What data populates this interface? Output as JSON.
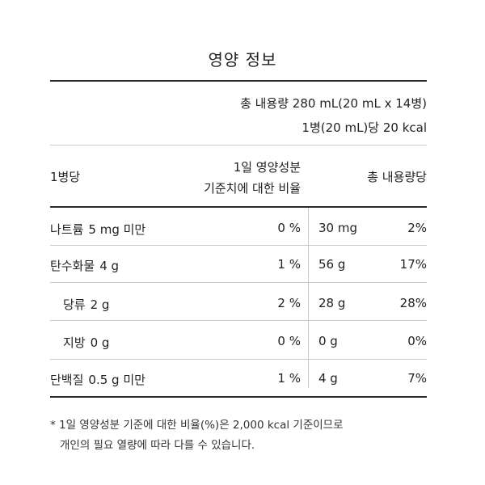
{
  "title": "영양 정보",
  "summary": {
    "total_content": "총 내용량 280 mL(20 mL x 14병)",
    "per_bottle": "1병(20 mL)당 20 kcal"
  },
  "header": {
    "col1": "1병당",
    "col2_line1": "1일 영양성분",
    "col2_line2": "기준치에 대한 비율",
    "col3": "총 내용량당"
  },
  "rows": [
    {
      "name": "나트륨",
      "amount": "5 mg 미만",
      "daily_value": "0 %",
      "total_amount": "30 mg",
      "total_daily_value": "2%"
    },
    {
      "name": "탄수화물",
      "amount": "4 g",
      "daily_value": "1 %",
      "total_amount": "56 g",
      "total_daily_value": "17%"
    },
    {
      "name": "당류",
      "amount": "2 g",
      "daily_value": "2 %",
      "total_amount": "28 g",
      "total_daily_value": "28%"
    },
    {
      "name": "지방",
      "amount": "0 g",
      "daily_value": "0 %",
      "total_amount": "0 g",
      "total_daily_value": "0%"
    },
    {
      "name": "단백질",
      "amount": "0.5 g 미만",
      "daily_value": "1 %",
      "total_amount": "4 g",
      "total_daily_value": "7%"
    }
  ],
  "footnote": {
    "line1": "* 1일 영양성분 기준에 대한 비율(%)은 2,000 kcal 기준이므로",
    "line2": "개인의 필요 열량에 따라 다를 수 있습니다."
  }
}
